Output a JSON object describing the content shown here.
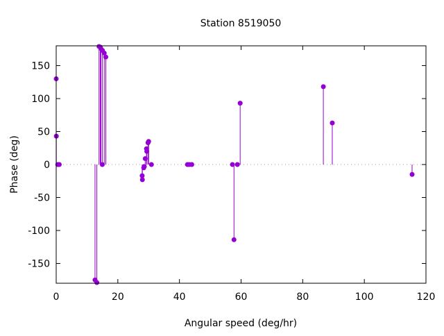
{
  "chart_data": {
    "type": "impulse-scatter",
    "title": "Station 8519050",
    "xlabel": "Angular speed (deg/hr)",
    "ylabel": "Phase (deg)",
    "xlim": [
      0,
      120
    ],
    "ylim": [
      -180,
      180
    ],
    "xticks": [
      0,
      20,
      40,
      60,
      80,
      100,
      120
    ],
    "yticks": [
      -150,
      -100,
      -50,
      0,
      50,
      100,
      150
    ],
    "grid": false,
    "zero_line": "dotted",
    "color": "#9400d3",
    "points": [
      {
        "x": 0.0,
        "y": 130
      },
      {
        "x": 0.04,
        "y": 43
      },
      {
        "x": 0.5,
        "y": 0
      },
      {
        "x": 1.0,
        "y": 0
      },
      {
        "x": 12.6,
        "y": -175
      },
      {
        "x": 13.2,
        "y": -179
      },
      {
        "x": 13.9,
        "y": 179
      },
      {
        "x": 14.3,
        "y": 178
      },
      {
        "x": 14.5,
        "y": 176
      },
      {
        "x": 14.96,
        "y": 0
      },
      {
        "x": 15.0,
        "y": 173
      },
      {
        "x": 15.6,
        "y": 169
      },
      {
        "x": 16.1,
        "y": 163
      },
      {
        "x": 27.9,
        "y": -17
      },
      {
        "x": 27.97,
        "y": -23
      },
      {
        "x": 28.4,
        "y": -5
      },
      {
        "x": 28.6,
        "y": -3
      },
      {
        "x": 28.9,
        "y": 9
      },
      {
        "x": 29.3,
        "y": 24
      },
      {
        "x": 29.4,
        "y": 20
      },
      {
        "x": 29.8,
        "y": 33
      },
      {
        "x": 30.0,
        "y": 35
      },
      {
        "x": 30.9,
        "y": 0
      },
      {
        "x": 42.6,
        "y": 0
      },
      {
        "x": 43.2,
        "y": 0
      },
      {
        "x": 44.0,
        "y": 0
      },
      {
        "x": 57.2,
        "y": 0
      },
      {
        "x": 57.7,
        "y": -114
      },
      {
        "x": 58.8,
        "y": 0
      },
      {
        "x": 59.7,
        "y": 93
      },
      {
        "x": 86.7,
        "y": 118
      },
      {
        "x": 89.6,
        "y": 63
      },
      {
        "x": 115.5,
        "y": -15
      }
    ]
  }
}
